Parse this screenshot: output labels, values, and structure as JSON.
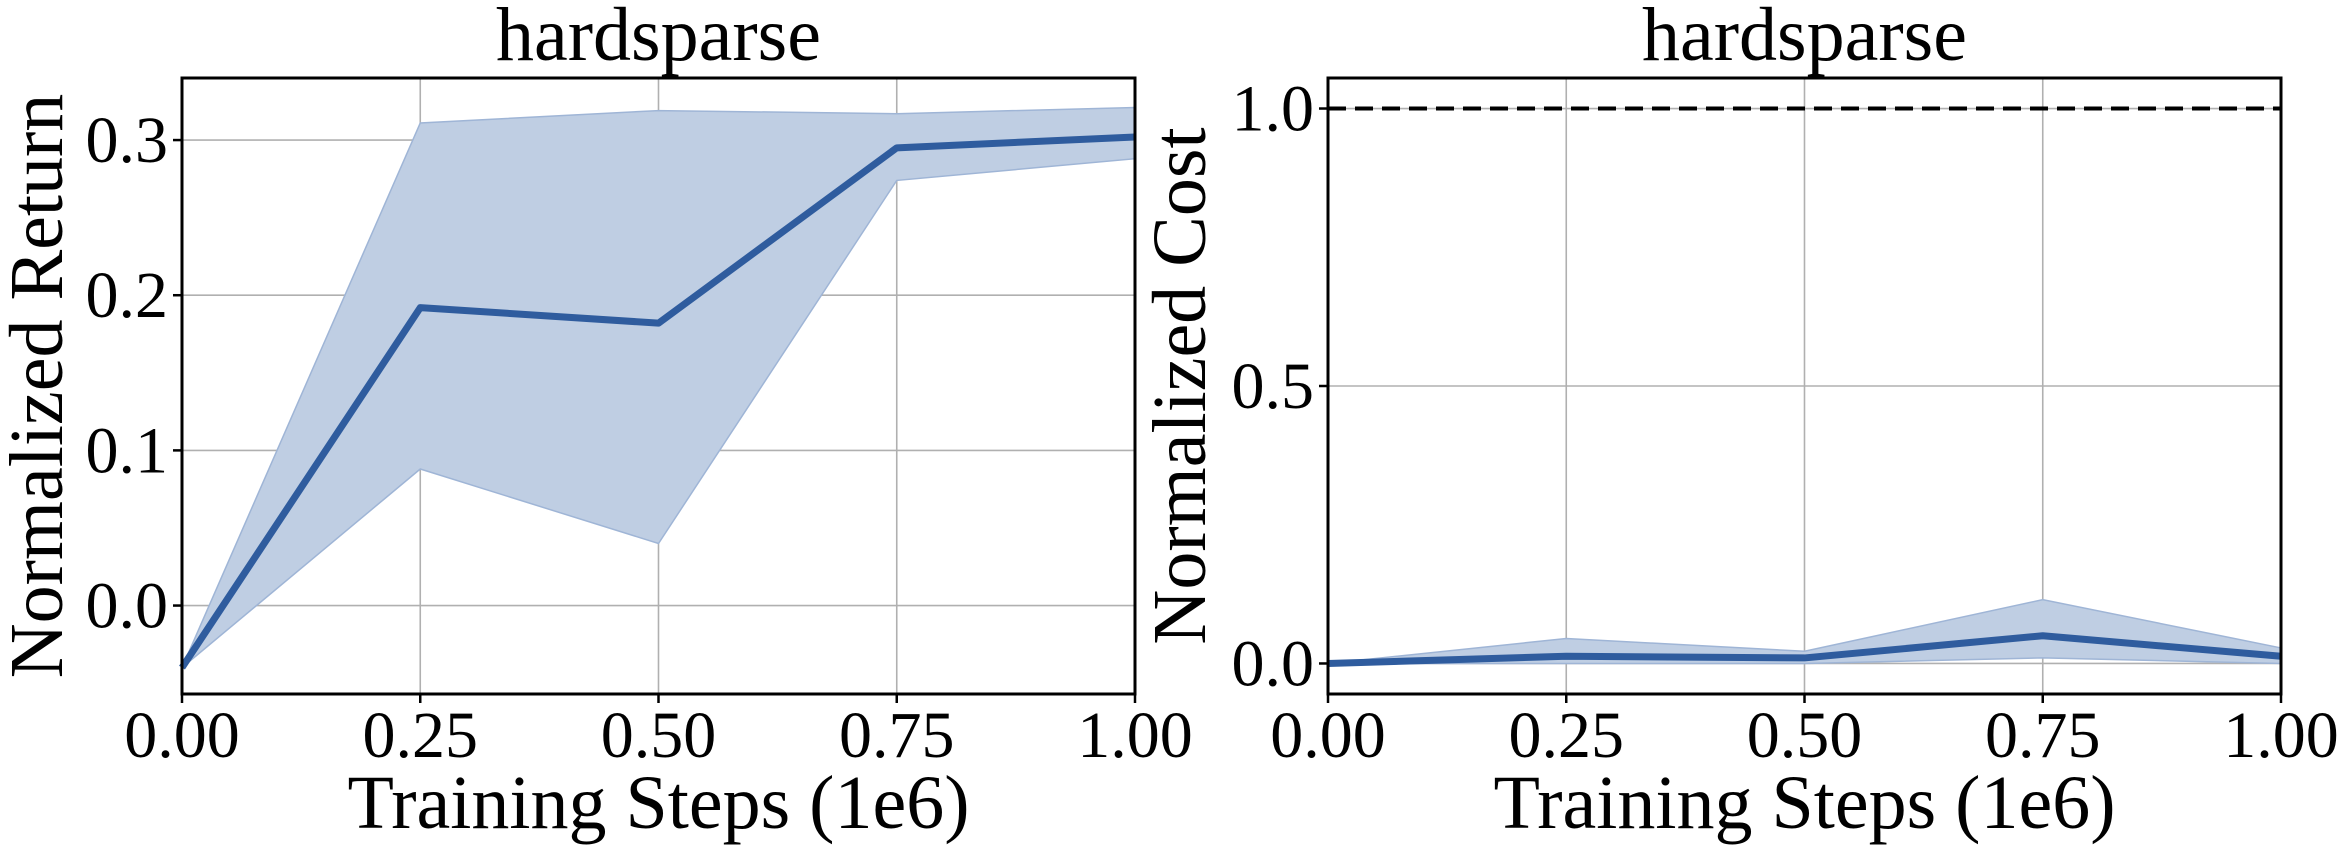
{
  "chart_data": [
    {
      "type": "line",
      "title": "hardsparse",
      "xlabel": "Training Steps (1e6)",
      "ylabel": "Normalized Return",
      "xlim": [
        0.0,
        1.0
      ],
      "ylim": [
        -0.057,
        0.34
      ],
      "xticks": [
        "0.00",
        "0.25",
        "0.50",
        "0.75",
        "1.00"
      ],
      "yticks": [
        0.0,
        0.1,
        0.2,
        0.3
      ],
      "ytick_labels": [
        "0.0",
        "0.1",
        "0.2",
        "0.3"
      ],
      "grid": true,
      "color": "#2f5c9e",
      "band_color": "#bfcee3",
      "series": [
        {
          "x": [
            0.0,
            0.25,
            0.5,
            0.75,
            1.0
          ],
          "y": [
            -0.04,
            0.192,
            0.182,
            0.295,
            0.302
          ],
          "lower": [
            -0.04,
            0.088,
            0.04,
            0.274,
            0.288
          ],
          "upper": [
            -0.04,
            0.311,
            0.319,
            0.317,
            0.321
          ]
        }
      ]
    },
    {
      "type": "line",
      "title": "hardsparse",
      "xlabel": "Training Steps (1e6)",
      "ylabel": "Normalized Cost",
      "xlim": [
        0.0,
        1.0
      ],
      "ylim": [
        -0.055,
        1.055
      ],
      "xticks": [
        "0.00",
        "0.25",
        "0.50",
        "0.75",
        "1.00"
      ],
      "yticks": [
        0.0,
        0.5,
        1.0
      ],
      "ytick_labels": [
        "0.0",
        "0.5",
        "1.0"
      ],
      "grid": true,
      "color": "#2f5c9e",
      "band_color": "#bfcee3",
      "threshold": {
        "y": 1.0,
        "style": "dashed",
        "color": "#000000"
      },
      "series": [
        {
          "x": [
            0.0,
            0.25,
            0.5,
            0.75,
            1.0
          ],
          "y": [
            0.0,
            0.013,
            0.01,
            0.05,
            0.013
          ],
          "lower": [
            0.0,
            0.0,
            0.0,
            0.01,
            0.0
          ],
          "upper": [
            0.0,
            0.045,
            0.022,
            0.115,
            0.028
          ]
        }
      ]
    }
  ]
}
